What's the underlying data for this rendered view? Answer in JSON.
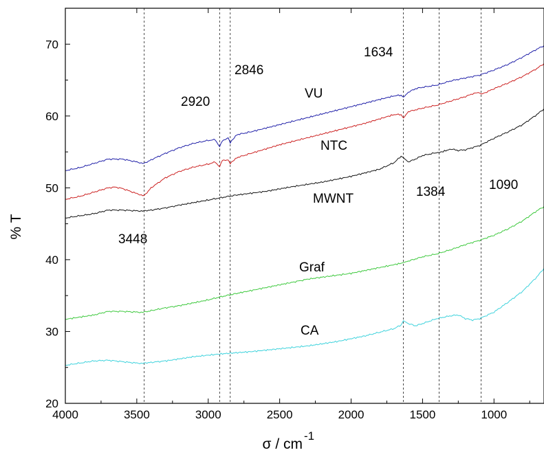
{
  "chart_data": {
    "type": "line",
    "title": "",
    "xlabel": "σ / cm",
    "xlabel_superscript": "-1",
    "ylabel": "% T",
    "xlim": [
      4000,
      650
    ],
    "ylim": [
      20,
      75
    ],
    "x_reversed": true,
    "xticks": [
      4000,
      3500,
      3000,
      2500,
      2000,
      1500,
      1000
    ],
    "yticks": [
      20,
      30,
      40,
      50,
      60,
      70
    ],
    "grid": false,
    "legend": "none",
    "series": [
      {
        "name": "VU",
        "color": "#1f1fa8",
        "x": [
          4000,
          3900,
          3800,
          3700,
          3600,
          3500,
          3448,
          3400,
          3300,
          3200,
          3100,
          3000,
          2950,
          2920,
          2900,
          2860,
          2846,
          2800,
          2700,
          2500,
          2300,
          2100,
          1900,
          1700,
          1650,
          1634,
          1600,
          1550,
          1500,
          1400,
          1300,
          1200,
          1100,
          1000,
          900,
          800,
          700,
          650
        ],
        "y": [
          52.4,
          52.8,
          53.4,
          54.0,
          54.0,
          53.6,
          53.4,
          53.9,
          54.8,
          55.6,
          56.2,
          56.6,
          56.7,
          55.7,
          56.6,
          56.9,
          56.3,
          57.4,
          57.8,
          58.8,
          59.8,
          60.8,
          61.8,
          62.8,
          62.9,
          62.6,
          63.3,
          63.8,
          64.0,
          64.3,
          64.9,
          65.3,
          65.7,
          66.4,
          67.2,
          68.2,
          69.3,
          69.8
        ]
      },
      {
        "name": "NTC",
        "color": "#cc2020",
        "x": [
          4000,
          3900,
          3800,
          3700,
          3650,
          3600,
          3500,
          3448,
          3400,
          3300,
          3200,
          3100,
          3000,
          2950,
          2920,
          2900,
          2860,
          2846,
          2800,
          2700,
          2500,
          2300,
          2100,
          1900,
          1700,
          1650,
          1634,
          1600,
          1500,
          1400,
          1300,
          1200,
          1150,
          1100,
          1090,
          1000,
          900,
          800,
          700,
          650
        ],
        "y": [
          48.4,
          48.8,
          49.4,
          50.0,
          50.1,
          49.9,
          49.2,
          48.9,
          50.0,
          51.4,
          52.3,
          52.9,
          53.3,
          53.6,
          52.9,
          53.9,
          53.8,
          53.4,
          54.2,
          54.8,
          56.0,
          57.0,
          58.0,
          59.0,
          60.2,
          60.2,
          59.7,
          60.6,
          61.1,
          61.5,
          62.1,
          62.7,
          63.1,
          63.3,
          63.0,
          63.8,
          64.6,
          65.5,
          66.6,
          67.3
        ]
      },
      {
        "name": "MWNT",
        "color": "#111111",
        "x": [
          4000,
          3900,
          3800,
          3700,
          3600,
          3500,
          3448,
          3400,
          3300,
          3200,
          3000,
          2920,
          2800,
          2600,
          2400,
          2200,
          2000,
          1800,
          1700,
          1650,
          1634,
          1600,
          1550,
          1500,
          1400,
          1384,
          1300,
          1250,
          1200,
          1150,
          1100,
          1000,
          900,
          800,
          700,
          650
        ],
        "y": [
          45.8,
          46.1,
          46.4,
          46.9,
          46.9,
          46.8,
          46.8,
          46.9,
          47.2,
          47.6,
          48.3,
          48.6,
          49.0,
          49.5,
          50.2,
          50.8,
          51.6,
          52.6,
          53.5,
          54.4,
          54.2,
          53.6,
          54.0,
          54.5,
          54.9,
          54.9,
          55.4,
          55.2,
          55.3,
          55.6,
          55.9,
          56.9,
          57.8,
          58.8,
          60.2,
          61.0
        ]
      },
      {
        "name": "Graf",
        "color": "#3cc83c",
        "x": [
          4000,
          3800,
          3700,
          3600,
          3500,
          3448,
          3300,
          3200,
          3000,
          2920,
          2800,
          2600,
          2400,
          2300,
          2000,
          1800,
          1650,
          1634,
          1600,
          1500,
          1400,
          1300,
          1200,
          1100,
          1000,
          900,
          800,
          700,
          650
        ],
        "y": [
          31.7,
          32.3,
          32.8,
          32.8,
          32.7,
          32.7,
          33.3,
          33.6,
          34.4,
          34.8,
          35.3,
          36.1,
          36.9,
          37.3,
          38.1,
          38.9,
          39.5,
          39.6,
          39.8,
          40.4,
          40.8,
          41.4,
          42.1,
          42.7,
          43.4,
          44.3,
          45.4,
          46.8,
          47.4
        ]
      },
      {
        "name": "CA",
        "color": "#3cd2dc",
        "x": [
          4000,
          3900,
          3800,
          3700,
          3600,
          3500,
          3448,
          3400,
          3300,
          3100,
          2900,
          2700,
          2500,
          2300,
          2100,
          1900,
          1800,
          1700,
          1650,
          1634,
          1600,
          1550,
          1500,
          1400,
          1300,
          1250,
          1200,
          1150,
          1100,
          1000,
          900,
          800,
          700,
          650
        ],
        "y": [
          25.3,
          25.6,
          25.9,
          26.0,
          25.8,
          25.6,
          25.6,
          25.7,
          25.9,
          26.5,
          26.9,
          27.2,
          27.6,
          28.0,
          28.6,
          29.4,
          29.9,
          30.4,
          30.9,
          31.5,
          31.1,
          30.8,
          31.1,
          31.8,
          32.2,
          32.3,
          31.8,
          31.6,
          31.8,
          32.7,
          34.1,
          35.6,
          37.6,
          38.8
        ]
      }
    ],
    "vlines": [
      3448,
      2920,
      2846,
      1634,
      1384,
      1090
    ],
    "annotations": [
      "2920",
      "2846",
      "1634",
      "VU",
      "NTC",
      "MWNT",
      "1384",
      "1090",
      "3448",
      "Graf",
      "CA"
    ]
  }
}
